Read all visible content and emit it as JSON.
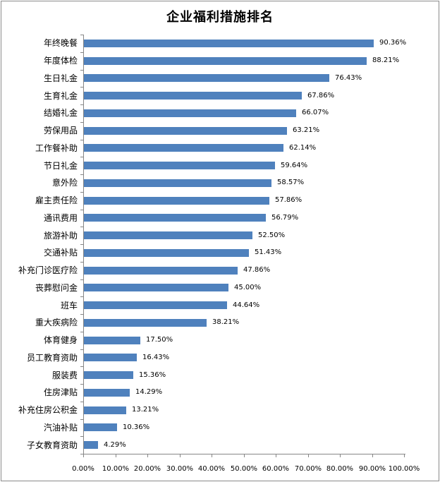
{
  "chart_data": {
    "type": "bar",
    "orientation": "horizontal",
    "title": "企业福利措施排名",
    "xlabel": "",
    "ylabel": "",
    "xlim": [
      0,
      100
    ],
    "grid": false,
    "legend": null,
    "bar_color": "#4f81bd",
    "categories": [
      "年终晚餐",
      "年度体检",
      "生日礼金",
      "生育礼金",
      "结婚礼金",
      "劳保用品",
      "工作餐补助",
      "节日礼金",
      "意外险",
      "雇主责任险",
      "通讯费用",
      "旅游补助",
      "交通补贴",
      "补充门诊医疗险",
      "丧葬慰问金",
      "班车",
      "重大疾病险",
      "体育健身",
      "员工教育资助",
      "服装费",
      "住房津贴",
      "补充住房公积金",
      "汽油补贴",
      "子女教育资助"
    ],
    "values": [
      90.36,
      88.21,
      76.43,
      67.86,
      66.07,
      63.21,
      62.14,
      59.64,
      58.57,
      57.86,
      56.79,
      52.5,
      51.43,
      47.86,
      45.0,
      44.64,
      38.21,
      17.5,
      16.43,
      15.36,
      14.29,
      13.21,
      10.36,
      4.29
    ],
    "value_labels": [
      "90.36%",
      "88.21%",
      "76.43%",
      "67.86%",
      "66.07%",
      "63.21%",
      "62.14%",
      "59.64%",
      "58.57%",
      "57.86%",
      "56.79%",
      "52.50%",
      "51.43%",
      "47.86%",
      "45.00%",
      "44.64%",
      "38.21%",
      "17.50%",
      "16.43%",
      "15.36%",
      "14.29%",
      "13.21%",
      "10.36%",
      "4.29%"
    ],
    "x_ticks": [
      "0.00%",
      "10.00%",
      "20.00%",
      "30.00%",
      "40.00%",
      "50.00%",
      "60.00%",
      "70.00%",
      "80.00%",
      "90.00%",
      "100.00%"
    ]
  }
}
